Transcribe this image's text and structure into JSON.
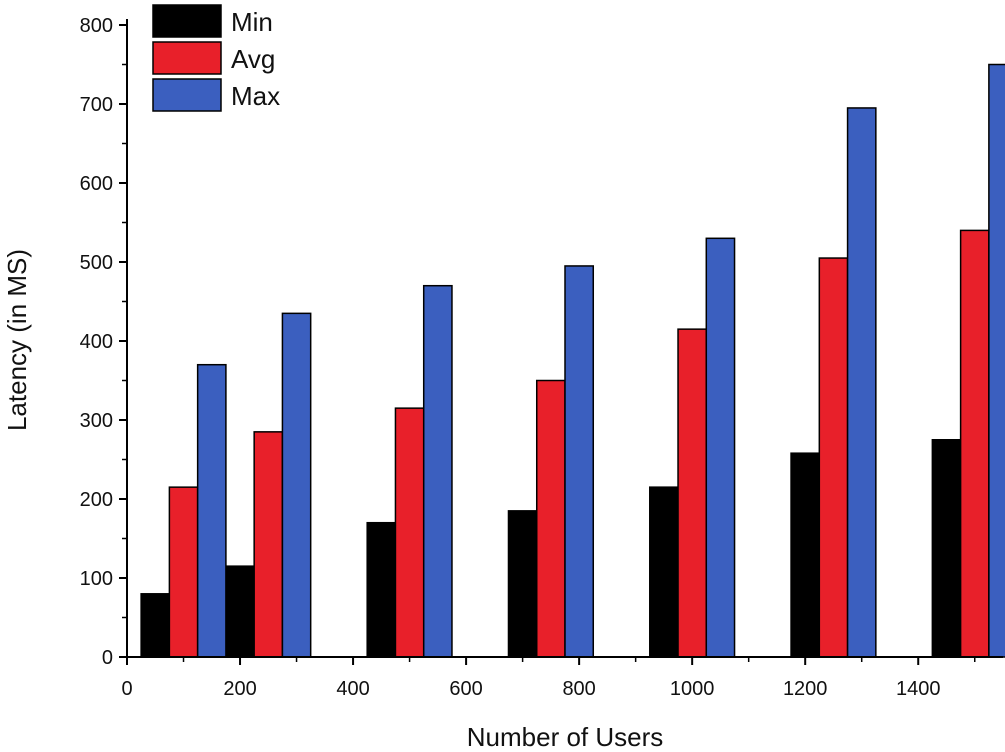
{
  "chart_data": {
    "type": "bar",
    "x_axis_type": "numeric",
    "categories": [
      100,
      250,
      500,
      750,
      1000,
      1250,
      1500
    ],
    "series": [
      {
        "name": "Min",
        "values": [
          80,
          115,
          170,
          185,
          215,
          258,
          275
        ],
        "color": "#000000"
      },
      {
        "name": "Avg",
        "values": [
          215,
          285,
          315,
          350,
          415,
          505,
          540
        ],
        "color": "#e8202a"
      },
      {
        "name": "Max",
        "values": [
          370,
          435,
          470,
          495,
          530,
          695,
          750
        ],
        "color": "#3b5fbf"
      }
    ],
    "title": "",
    "xlabel": "Number of Users",
    "ylabel": "Latency (in MS)",
    "xlim": [
      0,
      1550
    ],
    "ylim": [
      0,
      800
    ],
    "x_ticks": [
      0,
      200,
      400,
      600,
      800,
      1000,
      1200,
      1400
    ],
    "y_ticks": [
      0,
      100,
      200,
      300,
      400,
      500,
      600,
      700,
      800
    ],
    "grid": false,
    "legend_position": "top-left"
  }
}
